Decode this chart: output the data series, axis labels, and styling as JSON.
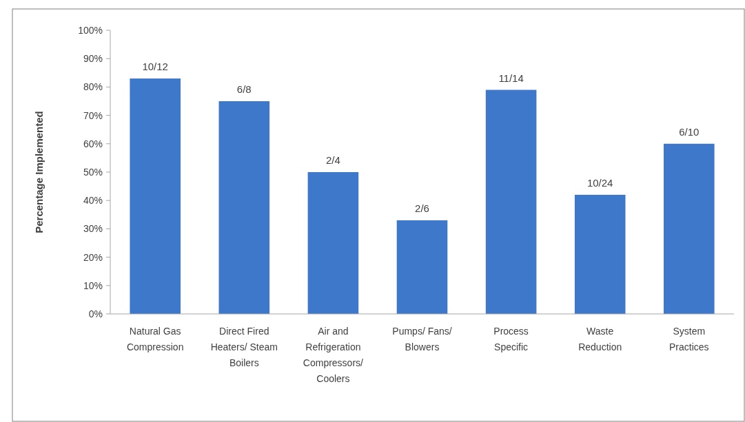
{
  "chart_data": {
    "type": "bar",
    "ylabel": "Percentage Implemented",
    "categories": [
      "Natural Gas Compression",
      "Direct Fired Heaters/ Steam Boilers",
      "Air and Refrigeration Compressors/ Coolers",
      "Pumps/ Fans/ Blowers",
      "Process Specific",
      "Waste Reduction",
      "System Practices"
    ],
    "values": [
      83,
      75,
      50,
      33,
      79,
      42,
      60
    ],
    "annotations": [
      {
        "text": "10/12",
        "x": "Natural Gas Compression",
        "y": 83
      },
      {
        "text": "6/8",
        "x": "Direct Fired Heaters/ Steam Boilers",
        "y": 75
      },
      {
        "text": "2/4",
        "x": "Air and Refrigeration Compressors/ Coolers",
        "y": 50
      },
      {
        "text": "2/6",
        "x": "Pumps/ Fans/ Blowers",
        "y": 33
      },
      {
        "text": "11/14",
        "x": "Process Specific",
        "y": 79
      },
      {
        "text": "10/24",
        "x": "Waste Reduction",
        "y": 42
      },
      {
        "text": "6/10",
        "x": "System Practices",
        "y": 60
      }
    ],
    "color": "#3d78cb",
    "ylim": [
      0,
      100
    ],
    "yticks": [
      {
        "value": 0,
        "label": "0%"
      },
      {
        "value": 10,
        "label": "10%"
      },
      {
        "value": 20,
        "label": "20%"
      },
      {
        "value": 30,
        "label": "30%"
      },
      {
        "value": 40,
        "label": "40%"
      },
      {
        "value": 50,
        "label": "50%"
      },
      {
        "value": 60,
        "label": "60%"
      },
      {
        "value": 70,
        "label": "70%"
      },
      {
        "value": 80,
        "label": "80%"
      },
      {
        "value": 90,
        "label": "90%"
      },
      {
        "value": 100,
        "label": "100%"
      }
    ],
    "grid": false
  }
}
